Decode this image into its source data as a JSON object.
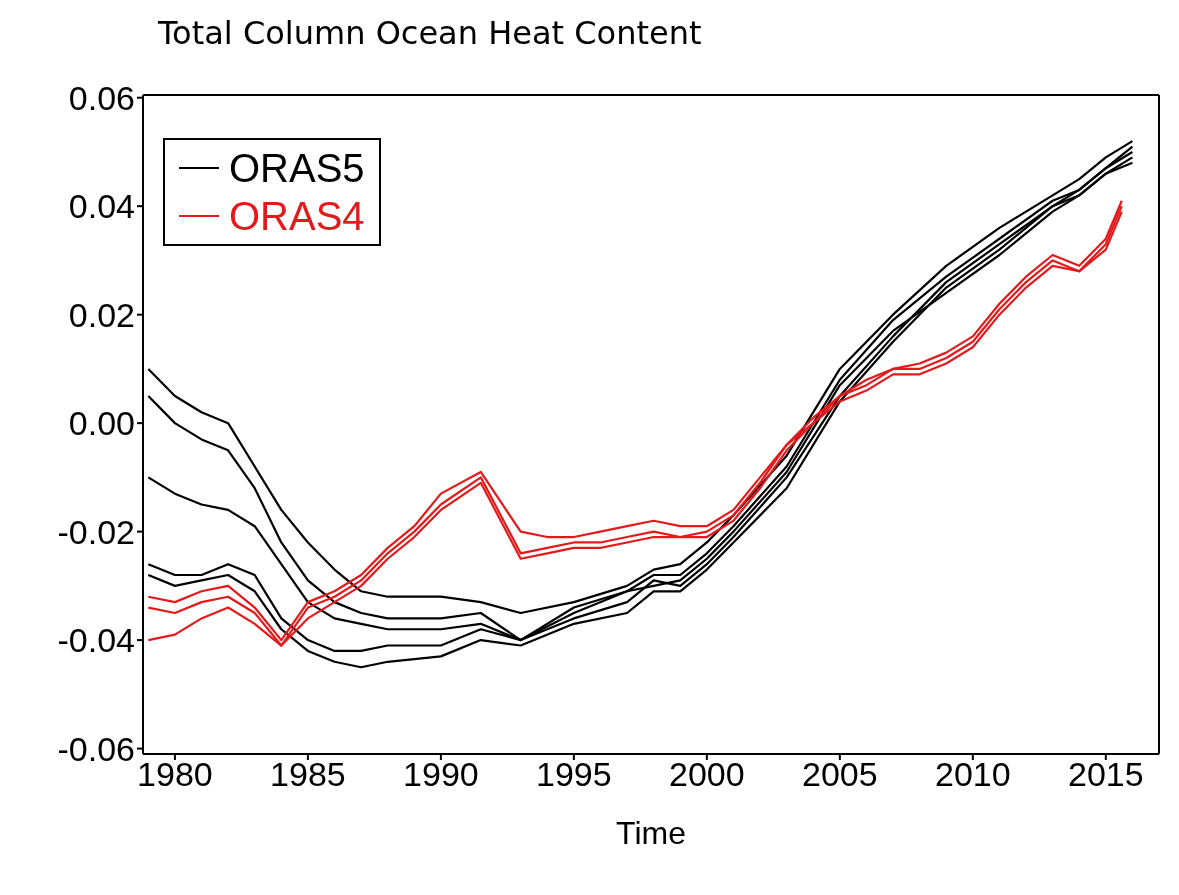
{
  "chart_data": {
    "type": "line",
    "title": "Total Column Ocean Heat Content",
    "xlabel": "Time",
    "x": [
      1979,
      1980,
      1981,
      1982,
      1983,
      1984,
      1985,
      1986,
      1987,
      1988,
      1990,
      1991.5,
      1993,
      1995,
      1997,
      1998,
      1999,
      2000,
      2001,
      2003,
      2005,
      2007,
      2009,
      2011,
      2013,
      2014,
      2015,
      2016
    ],
    "series": [
      {
        "name": "ORAS5",
        "color": "#000000",
        "values": [
          0.01,
          0.005,
          0.002,
          0.0,
          -0.008,
          -0.016,
          -0.022,
          -0.027,
          -0.031,
          -0.032,
          -0.032,
          -0.033,
          -0.035,
          -0.033,
          -0.03,
          -0.027,
          -0.026,
          -0.022,
          -0.017,
          -0.006,
          0.01,
          0.02,
          0.029,
          0.036,
          0.042,
          0.045,
          0.049,
          0.052
        ]
      },
      {
        "color": "#000000",
        "values": [
          0.005,
          0.0,
          -0.003,
          -0.005,
          -0.012,
          -0.022,
          -0.029,
          -0.033,
          -0.035,
          -0.036,
          -0.036,
          -0.035,
          -0.04,
          -0.034,
          -0.031,
          -0.028,
          -0.028,
          -0.024,
          -0.019,
          -0.008,
          0.008,
          0.019,
          0.027,
          0.034,
          0.041,
          0.043,
          0.047,
          0.05
        ]
      },
      {
        "color": "#000000",
        "values": [
          -0.01,
          -0.013,
          -0.015,
          -0.016,
          -0.019,
          -0.026,
          -0.033,
          -0.036,
          -0.037,
          -0.038,
          -0.038,
          -0.037,
          -0.04,
          -0.035,
          -0.031,
          -0.03,
          -0.029,
          -0.025,
          -0.02,
          -0.009,
          0.007,
          0.017,
          0.024,
          0.031,
          0.039,
          0.042,
          0.046,
          0.048
        ]
      },
      {
        "color": "#000000",
        "values": [
          -0.026,
          -0.028,
          -0.028,
          -0.026,
          -0.028,
          -0.036,
          -0.04,
          -0.042,
          -0.042,
          -0.041,
          -0.041,
          -0.038,
          -0.04,
          -0.036,
          -0.033,
          -0.029,
          -0.03,
          -0.026,
          -0.021,
          -0.01,
          0.005,
          0.016,
          0.026,
          0.033,
          0.04,
          0.043,
          0.047,
          0.051
        ]
      },
      {
        "color": "#000000",
        "values": [
          -0.028,
          -0.03,
          -0.029,
          -0.028,
          -0.031,
          -0.038,
          -0.042,
          -0.044,
          -0.045,
          -0.044,
          -0.043,
          -0.04,
          -0.041,
          -0.037,
          -0.035,
          -0.031,
          -0.031,
          -0.027,
          -0.022,
          -0.012,
          0.004,
          0.015,
          0.025,
          0.032,
          0.04,
          0.042,
          0.046,
          0.049
        ]
      },
      {
        "name": "ORAS4",
        "color": "#e31a1c",
        "x": [
          1979,
          1980,
          1981,
          1982,
          1983,
          1984,
          1985,
          1986,
          1987,
          1988,
          1989,
          1990,
          1991.5,
          1993,
          1994,
          1995,
          1996,
          1997,
          1998,
          1999,
          2000,
          2001,
          2002,
          2003,
          2004,
          2005,
          2006,
          2007,
          2008,
          2009,
          2010,
          2011,
          2012,
          2013,
          2014,
          2015,
          2015.6
        ],
        "values": [
          -0.032,
          -0.033,
          -0.031,
          -0.03,
          -0.034,
          -0.04,
          -0.033,
          -0.031,
          -0.028,
          -0.023,
          -0.019,
          -0.013,
          -0.009,
          -0.02,
          -0.021,
          -0.021,
          -0.02,
          -0.019,
          -0.018,
          -0.019,
          -0.019,
          -0.016,
          -0.01,
          -0.004,
          0.001,
          0.005,
          0.008,
          0.01,
          0.011,
          0.013,
          0.016,
          0.022,
          0.027,
          0.031,
          0.029,
          0.034,
          0.041
        ]
      },
      {
        "color": "#e31a1c",
        "x": [
          1979,
          1980,
          1981,
          1982,
          1983,
          1984,
          1985,
          1986,
          1987,
          1988,
          1989,
          1990,
          1991.5,
          1993,
          1994,
          1995,
          1996,
          1997,
          1998,
          1999,
          2000,
          2001,
          2002,
          2003,
          2004,
          2005,
          2006,
          2007,
          2008,
          2009,
          2010,
          2011,
          2012,
          2013,
          2014,
          2015,
          2015.6
        ],
        "values": [
          -0.034,
          -0.035,
          -0.033,
          -0.032,
          -0.035,
          -0.041,
          -0.034,
          -0.032,
          -0.029,
          -0.024,
          -0.02,
          -0.015,
          -0.01,
          -0.024,
          -0.023,
          -0.022,
          -0.022,
          -0.021,
          -0.02,
          -0.021,
          -0.02,
          -0.017,
          -0.011,
          -0.004,
          0.0,
          0.005,
          0.007,
          0.01,
          0.01,
          0.012,
          0.015,
          0.021,
          0.026,
          0.03,
          0.028,
          0.033,
          0.04
        ]
      },
      {
        "color": "#e31a1c",
        "x": [
          1979,
          1980,
          1981,
          1982,
          1983,
          1984,
          1985,
          1986,
          1987,
          1988,
          1989,
          1990,
          1991.5,
          1993,
          1994,
          1995,
          1996,
          1997,
          1998,
          1999,
          2000,
          2001,
          2002,
          2003,
          2004,
          2005,
          2006,
          2007,
          2008,
          2009,
          2010,
          2011,
          2012,
          2013,
          2014,
          2015,
          2015.6
        ],
        "values": [
          -0.04,
          -0.039,
          -0.036,
          -0.034,
          -0.037,
          -0.041,
          -0.036,
          -0.033,
          -0.03,
          -0.025,
          -0.021,
          -0.016,
          -0.011,
          -0.025,
          -0.024,
          -0.023,
          -0.023,
          -0.022,
          -0.021,
          -0.021,
          -0.021,
          -0.018,
          -0.012,
          -0.005,
          0.0,
          0.004,
          0.006,
          0.009,
          0.009,
          0.011,
          0.014,
          0.02,
          0.025,
          0.029,
          0.028,
          0.032,
          0.039
        ]
      }
    ],
    "xlim": [
      1978.8,
      2017
    ],
    "xticks": [
      1980,
      1985,
      1990,
      1995,
      2000,
      2005,
      2010,
      2015
    ],
    "ylim": [
      -0.061,
      0.0605
    ],
    "yticks": [
      {
        "value": -0.06,
        "label": "-0.06"
      },
      {
        "value": -0.04,
        "label": "-0.04"
      },
      {
        "value": -0.02,
        "label": "-0.02"
      },
      {
        "value": 0,
        "label": "0.00"
      },
      {
        "value": 0.02,
        "label": "0.02"
      },
      {
        "value": 0.04,
        "label": "0.04"
      },
      {
        "value": 0.06,
        "label": "0.06"
      }
    ],
    "legend": "top left",
    "marker": "none",
    "line_style": "solid"
  }
}
